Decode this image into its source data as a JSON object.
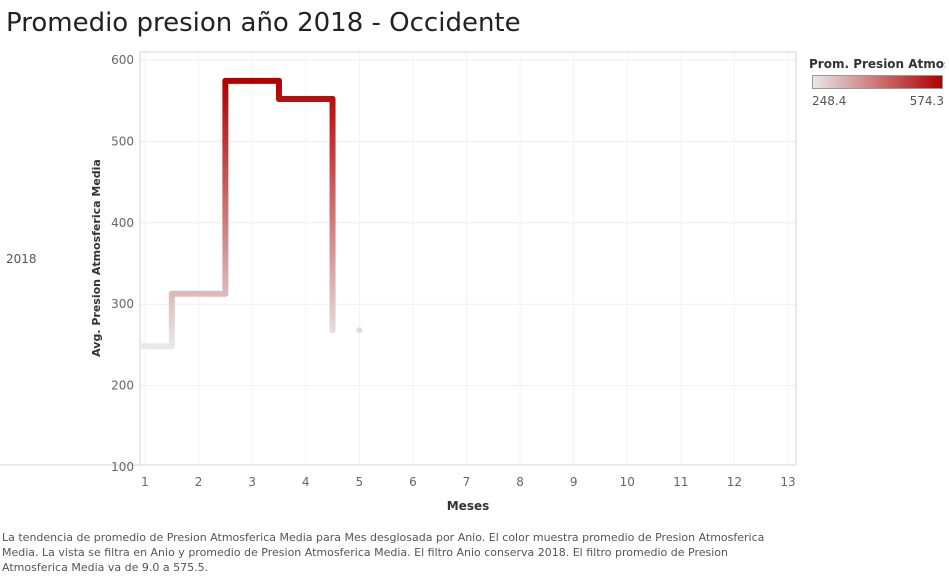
{
  "title": "Promedio presion año 2018 - Occidente",
  "row_label": "2018",
  "legend": {
    "title": "Prom. Presion Atmosfe..",
    "min_label": "248.4",
    "max_label": "574.3",
    "color_low": "#e8e8e8",
    "color_high": "#b10000"
  },
  "caption": "La tendencia de promedio de Presion Atmosferica Media para Mes desglosada por Anio.  El color muestra promedio de Presion Atmosferica Media. La vista se filtra en Anio y promedio de Presion Atmosferica Media. El filtro Anio conserva 2018. El filtro promedio de Presion Atmosferica Media va de 9.0 a 575.5.",
  "chart_data": {
    "type": "line",
    "line_style": "step",
    "x": [
      1,
      2,
      3,
      4,
      5
    ],
    "values": [
      248.4,
      312.9,
      574.3,
      552.1,
      268.0
    ],
    "xlabel": "Meses",
    "ylabel": "Avg. Presion Atmosferica Media",
    "xlim": [
      1,
      13
    ],
    "ylim": [
      100,
      600
    ],
    "x_ticks": [
      "1",
      "2",
      "3",
      "4",
      "5",
      "6",
      "7",
      "8",
      "9",
      "10",
      "11",
      "12",
      "13"
    ],
    "y_ticks": [
      "100",
      "200",
      "300",
      "400",
      "500",
      "600"
    ],
    "grid": true,
    "color_scale": [
      248.4,
      574.3
    ]
  }
}
